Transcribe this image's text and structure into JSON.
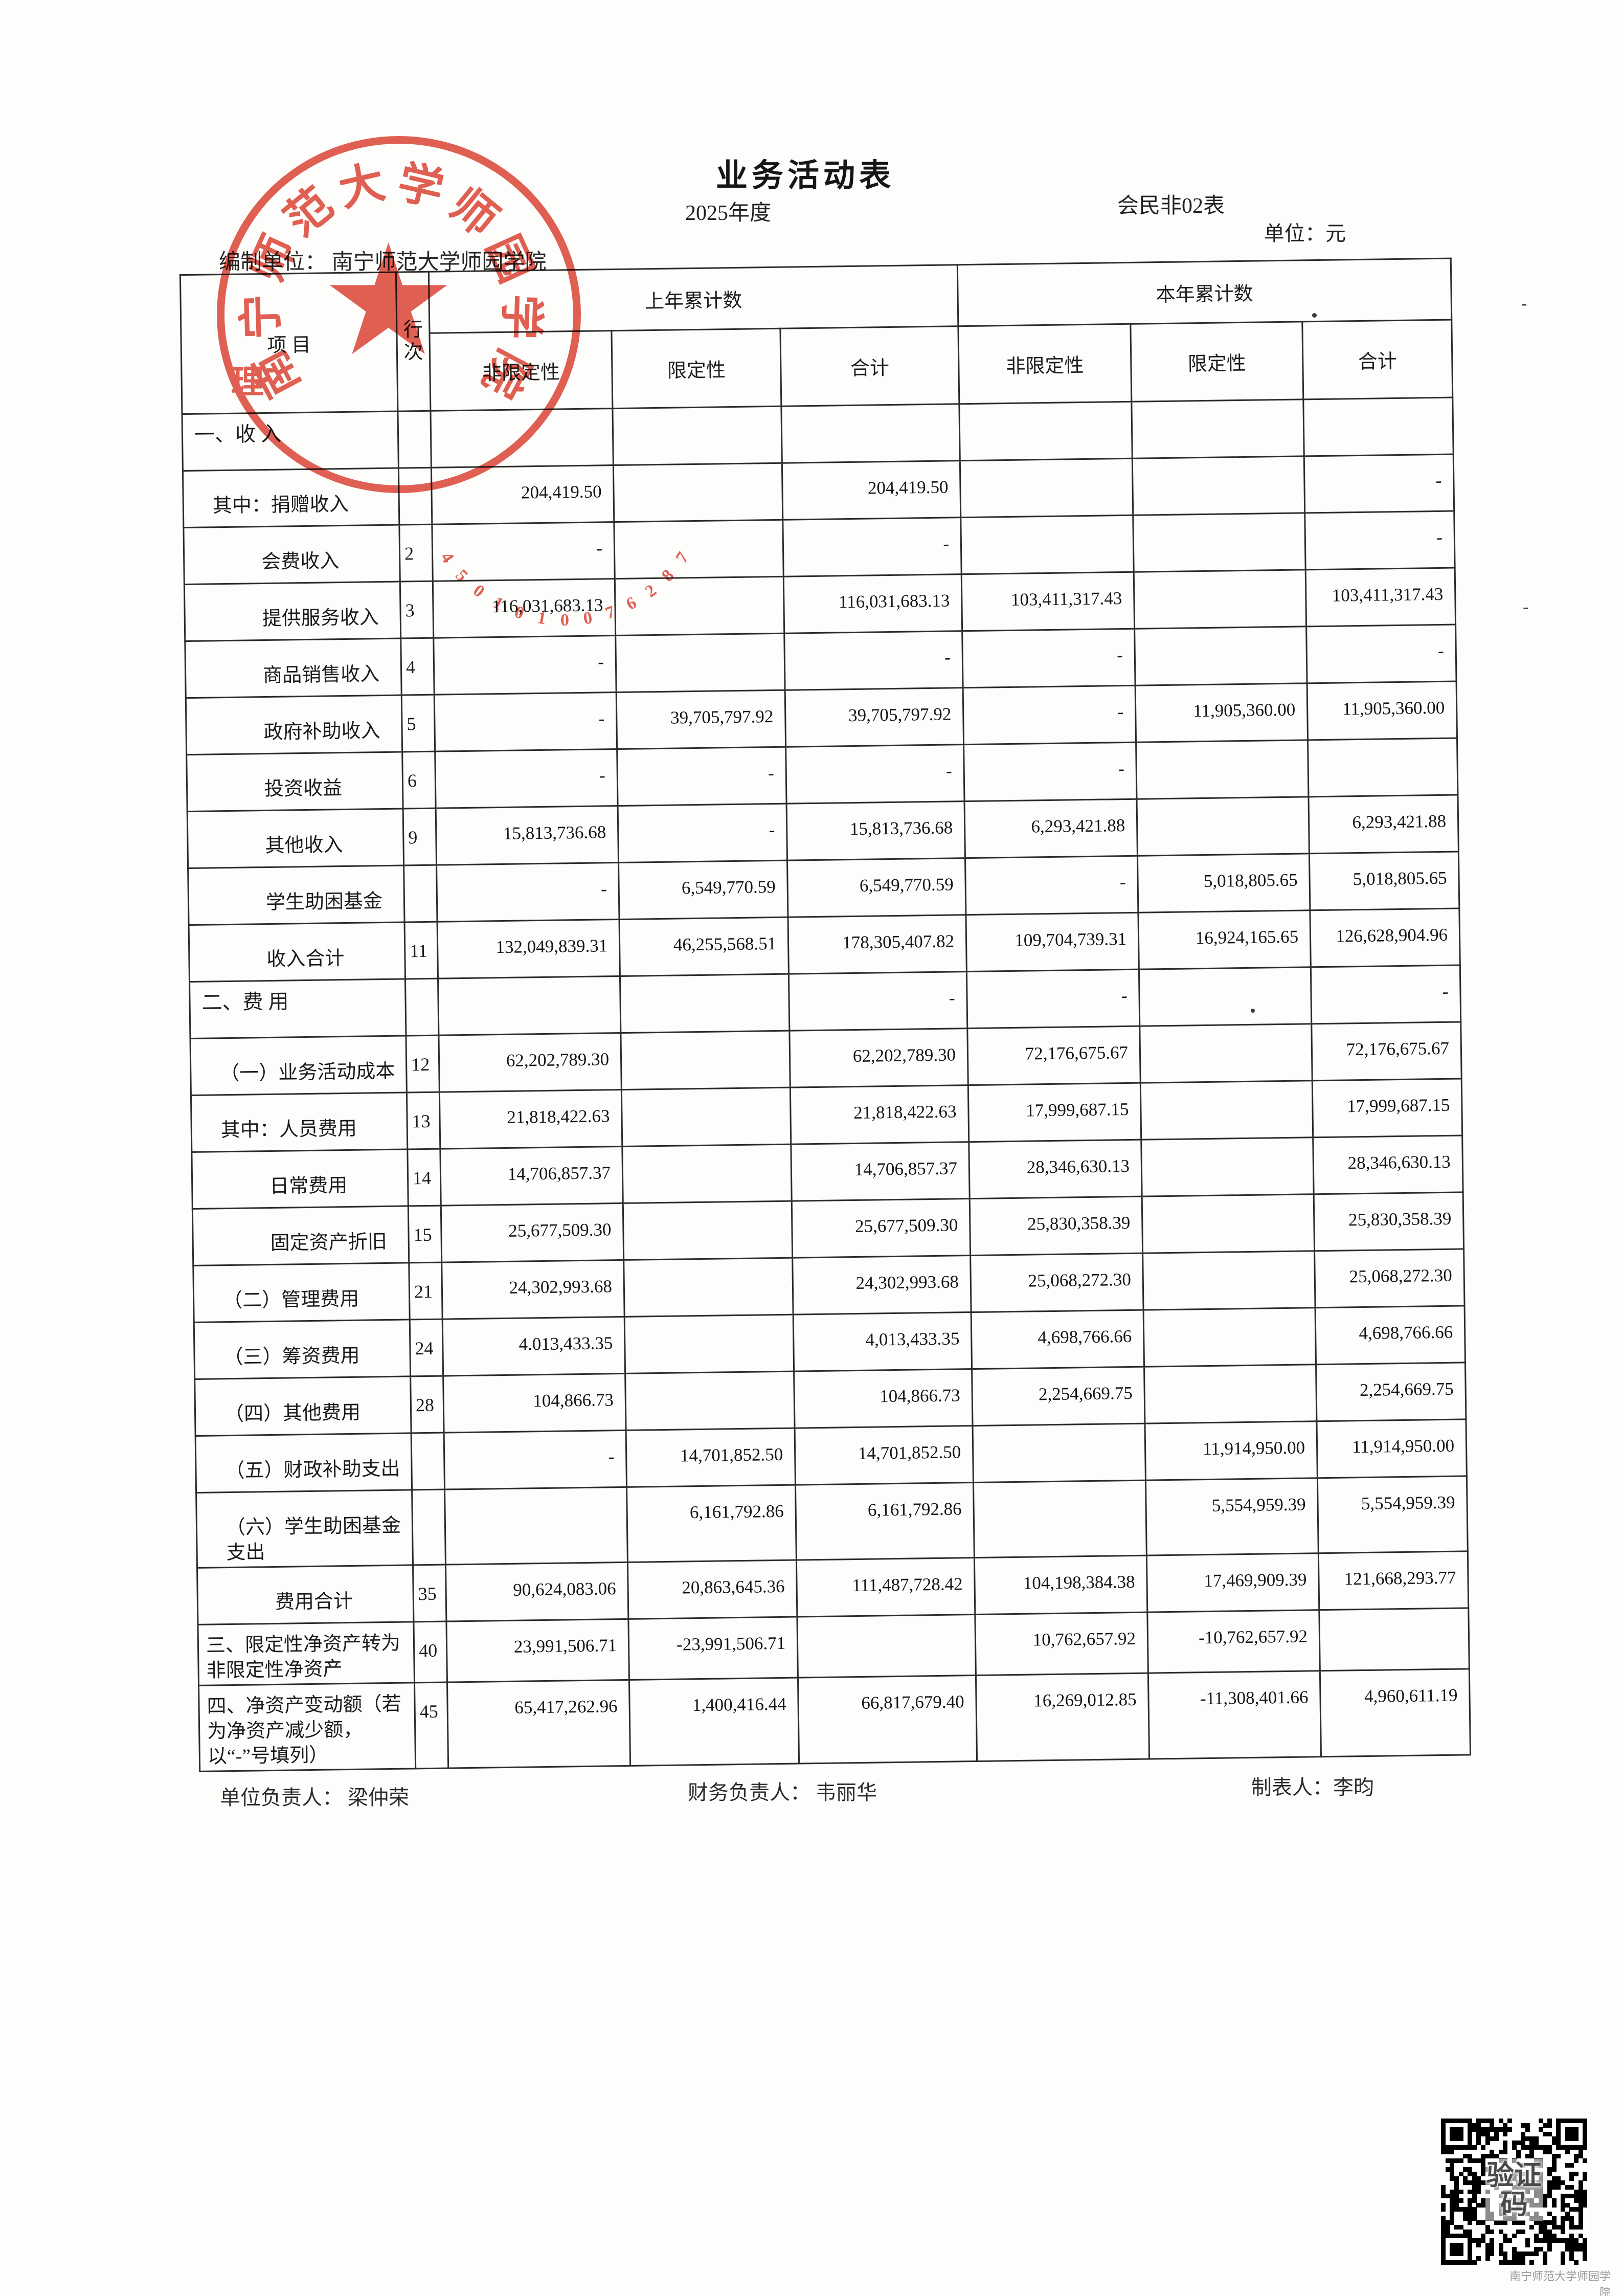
{
  "page": {
    "title": "业务活动表",
    "period": "2025年度",
    "form_code": "会民非02表",
    "unit_label": "单位：元",
    "prepared_by": "编制单位：  南宁师范大学师园学院"
  },
  "seal": {
    "org_arc": "南宁师范大学师园学院",
    "number_arc": "4501010076287",
    "inner_char": "理",
    "color": "#dd4a3c"
  },
  "table": {
    "header": {
      "item": "项  目",
      "line_no_vertical": "行次",
      "prev_group": "上年累计数",
      "curr_group": "本年累计数",
      "sub_headers": [
        "非限定性",
        "限定性",
        "合计"
      ]
    },
    "rows": [
      {
        "label": "一、收  入",
        "style": "section",
        "line_no": "",
        "values": [
          "",
          "",
          "",
          "",
          "",
          ""
        ]
      },
      {
        "label": "其中：捐赠收入",
        "style": "sub1",
        "line_no": "",
        "values": [
          "204,419.50",
          "",
          "204,419.50",
          "",
          "",
          "-"
        ]
      },
      {
        "label": "会费收入",
        "style": "sub2",
        "line_no": "2",
        "values": [
          "-",
          "",
          "-",
          "",
          "",
          "-"
        ]
      },
      {
        "label": "提供服务收入",
        "style": "sub2",
        "line_no": "3",
        "values": [
          "116,031,683.13",
          "",
          "116,031,683.13",
          "103,411,317.43",
          "",
          "103,411,317.43"
        ]
      },
      {
        "label": "商品销售收入",
        "style": "sub2",
        "line_no": "4",
        "values": [
          "-",
          "",
          "-",
          "-",
          "",
          "-"
        ]
      },
      {
        "label": "政府补助收入",
        "style": "sub2",
        "line_no": "5",
        "values": [
          "-",
          "39,705,797.92",
          "39,705,797.92",
          "-",
          "11,905,360.00",
          "11,905,360.00"
        ]
      },
      {
        "label": "投资收益",
        "style": "sub2",
        "line_no": "6",
        "values": [
          "-",
          "-",
          "-",
          "-",
          "",
          ""
        ]
      },
      {
        "label": "其他收入",
        "style": "sub2",
        "line_no": "9",
        "values": [
          "15,813,736.68",
          "-",
          "15,813,736.68",
          "6,293,421.88",
          "",
          "6,293,421.88"
        ]
      },
      {
        "label": "学生助困基金",
        "style": "sub2",
        "line_no": "",
        "values": [
          "-",
          "6,549,770.59",
          "6,549,770.59",
          "-",
          "5,018,805.65",
          "5,018,805.65"
        ]
      },
      {
        "label": "收入合计",
        "style": "sub2",
        "line_no": "11",
        "values": [
          "132,049,839.31",
          "46,255,568.51",
          "178,305,407.82",
          "109,704,739.31",
          "16,924,165.65",
          "126,628,904.96"
        ]
      },
      {
        "label": "二、费  用",
        "style": "section",
        "line_no": "",
        "values": [
          "",
          "",
          "-",
          "-",
          "",
          "-"
        ]
      },
      {
        "label": "（一）业务活动成本",
        "style": "sub1",
        "line_no": "12",
        "values": [
          "62,202,789.30",
          "",
          "62,202,789.30",
          "72,176,675.67",
          "",
          "72,176,675.67"
        ]
      },
      {
        "label": "其中：人员费用",
        "style": "sub1",
        "line_no": "13",
        "values": [
          "21,818,422.63",
          "",
          "21,818,422.63",
          "17,999,687.15",
          "",
          "17,999,687.15"
        ]
      },
      {
        "label": "日常费用",
        "style": "sub2",
        "line_no": "14",
        "values": [
          "14,706,857.37",
          "",
          "14,706,857.37",
          "28,346,630.13",
          "",
          "28,346,630.13"
        ]
      },
      {
        "label": "固定资产折旧",
        "style": "sub2",
        "line_no": "15",
        "values": [
          "25,677,509.30",
          "",
          "25,677,509.30",
          "25,830,358.39",
          "",
          "25,830,358.39"
        ]
      },
      {
        "label": "（二）管理费用",
        "style": "sub1",
        "line_no": "21",
        "values": [
          "24,302,993.68",
          "",
          "24,302,993.68",
          "25,068,272.30",
          "",
          "25,068,272.30"
        ]
      },
      {
        "label": "（三）筹资费用",
        "style": "sub1",
        "line_no": "24",
        "values": [
          "4.013,433.35",
          "",
          "4,013,433.35",
          "4,698,766.66",
          "",
          "4,698,766.66"
        ]
      },
      {
        "label": "（四）其他费用",
        "style": "sub1",
        "line_no": "28",
        "values": [
          "104,866.73",
          "",
          "104,866.73",
          "2,254,669.75",
          "",
          "2,254,669.75"
        ]
      },
      {
        "label": "（五）财政补助支出",
        "style": "sub1",
        "line_no": "",
        "values": [
          "-",
          "14,701,852.50",
          "14,701,852.50",
          "",
          "11,914,950.00",
          "11,914,950.00"
        ]
      },
      {
        "label": "（六）学生助困基金 支出",
        "style": "sub1",
        "line_no": "",
        "values": [
          "",
          "6,161,792.86",
          "6,161,792.86",
          "",
          "5,554,959.39",
          "5,554,959.39"
        ]
      },
      {
        "label": "费用合计",
        "style": "sub2",
        "line_no": "35",
        "values": [
          "90,624,083.06",
          "20,863,645.36",
          "111,487,728.42",
          "104,198,384.38",
          "17,469,909.39",
          "121,668,293.77"
        ]
      },
      {
        "label": "三、限定性净资产转为非限定性净资产",
        "style": "topitem",
        "line_no": "40",
        "values": [
          "23,991,506.71",
          "-23,991,506.71",
          "",
          "10,762,657.92",
          "-10,762,657.92",
          ""
        ]
      },
      {
        "label": "四、净资产变动额（若为净资产减少额，以“-”号填列）",
        "style": "topitem",
        "line_no": "45",
        "values": [
          "65,417,262.96",
          "1,400,416.44",
          "66,817,679.40",
          "16,269,012.85",
          "-11,308,401.66",
          "4,960,611.19"
        ]
      }
    ]
  },
  "footer": {
    "unit_head": "单位负责人：  梁仲荣",
    "finance_head": "财务负责人：  韦丽华",
    "preparer": "制表人：李昀"
  },
  "qr": {
    "overlay_line1": "验证",
    "overlay_line2": "码",
    "caption": "南宁师范大学师园学院"
  }
}
